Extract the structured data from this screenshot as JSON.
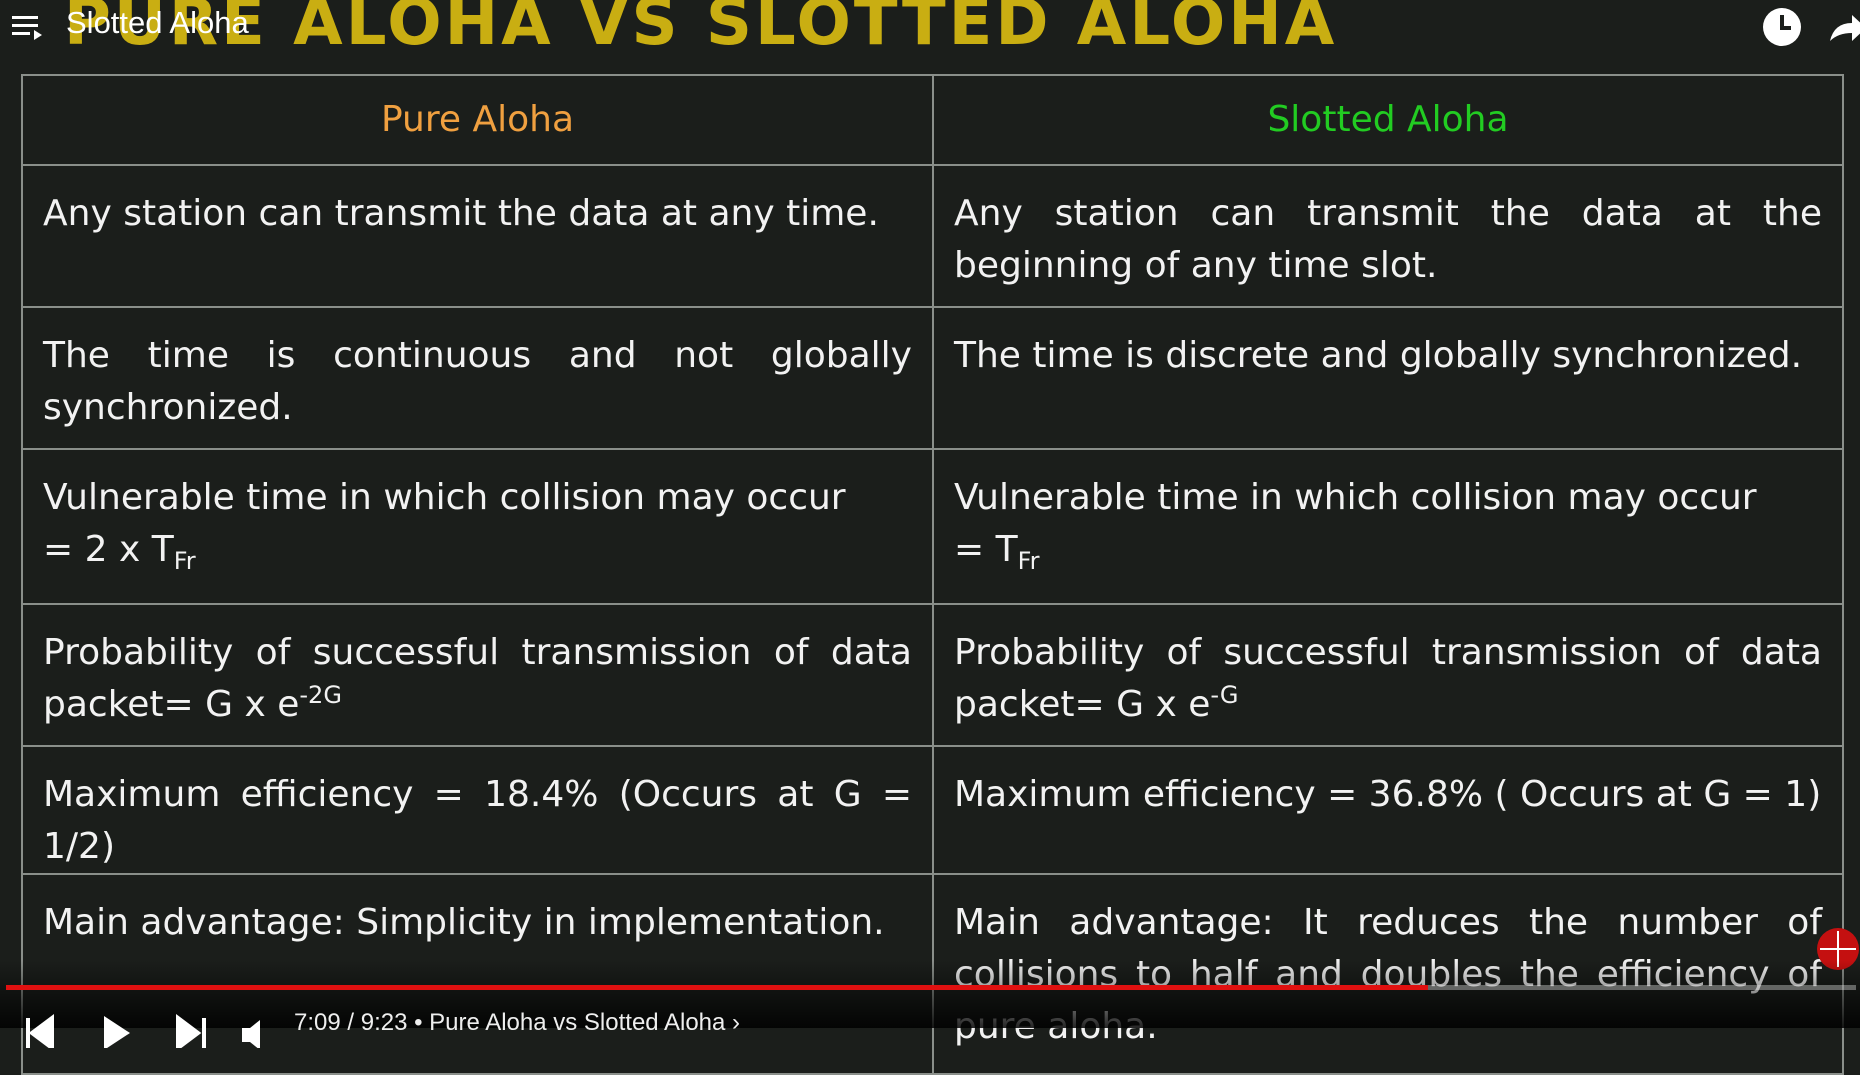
{
  "player": {
    "video_title": "Slotted Aloha",
    "time_info": "7:09 / 9:23 • Pure Aloha vs Slotted Aloha ›"
  },
  "slide": {
    "title": "Pure Aloha vs Slotted Aloha",
    "table": {
      "headers": [
        "Pure Aloha",
        "Slotted Aloha"
      ],
      "rows": [
        [
          {
            "text": "Any station can transmit the data at any time."
          },
          {
            "text": "Any station can transmit the data at the beginning of any time slot."
          }
        ],
        [
          {
            "text": "The time is continuous and not globally synchronized."
          },
          {
            "text": "The time is discrete and globally synchronized."
          }
        ],
        [
          {
            "text": "Vulnerable time in which collision may occur",
            "formula": "= 2 x T",
            "sub": "Fr"
          },
          {
            "text": "Vulnerable time in which collision may occur",
            "formula": "= T",
            "sub": "Fr"
          }
        ],
        [
          {
            "text": "Probability of successful transmission of data packet= G x e",
            "sup": "-2G"
          },
          {
            "text": "Probability of successful transmission of data packet= G x e",
            "sup": "-G"
          }
        ],
        [
          {
            "text": "Maximum efficiency = 18.4% (Occurs at G = 1/2)"
          },
          {
            "text": "Maximum efficiency = 36.8% ( Occurs at G = 1)"
          }
        ],
        [
          {
            "text": "Main advantage: Simplicity in implementation."
          },
          {
            "text": "Main advantage: It reduces the number of collisions to half and doubles the efficiency of pure aloha."
          }
        ]
      ]
    }
  }
}
